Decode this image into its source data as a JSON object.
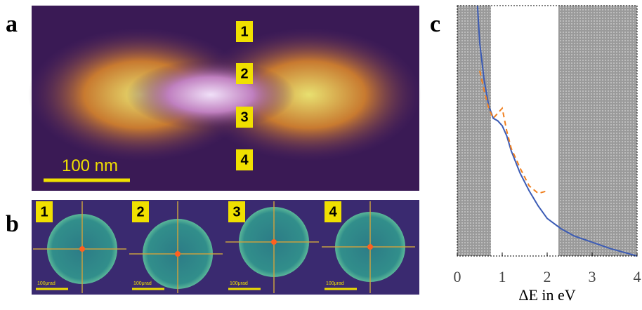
{
  "panel_a": {
    "label": "a",
    "scale_bar": "100 nm",
    "markers": [
      "1",
      "2",
      "3",
      "4"
    ]
  },
  "panel_b": {
    "label": "b",
    "insets": [
      {
        "marker": "1",
        "scale_bar": "100μrad"
      },
      {
        "marker": "2",
        "scale_bar": "100μrad"
      },
      {
        "marker": "3",
        "scale_bar": "100μrad"
      },
      {
        "marker": "4",
        "scale_bar": "100μrad"
      }
    ]
  },
  "chart_data": {
    "type": "line",
    "label": "c",
    "xlabel": "ΔE in eV",
    "xlim": [
      0,
      4
    ],
    "xticks": [
      0,
      1,
      2,
      3,
      4
    ],
    "ylim": [
      0,
      1
    ],
    "shaded": [
      [
        0,
        0.75
      ],
      [
        2.25,
        4
      ]
    ],
    "series": [
      {
        "color": "#3b5bb5",
        "dash": false,
        "x": [
          0.45,
          0.5,
          0.6,
          0.7,
          0.8,
          0.9,
          1.0,
          1.1,
          1.2,
          1.4,
          1.6,
          1.8,
          2.0,
          2.3,
          2.6,
          3.0,
          3.4,
          3.8,
          4.0
        ],
        "values": [
          1.0,
          0.85,
          0.7,
          0.6,
          0.55,
          0.54,
          0.52,
          0.48,
          0.42,
          0.33,
          0.26,
          0.2,
          0.15,
          0.11,
          0.08,
          0.055,
          0.03,
          0.01,
          0.0
        ]
      },
      {
        "color": "#f08020",
        "dash": true,
        "x": [
          0.5,
          0.6,
          0.7,
          0.8,
          0.9,
          1.0,
          1.1,
          1.2,
          1.4,
          1.6,
          1.8,
          2.0
        ],
        "values": [
          0.74,
          0.66,
          0.59,
          0.55,
          0.57,
          0.59,
          0.5,
          0.43,
          0.35,
          0.28,
          0.25,
          0.26
        ]
      }
    ]
  }
}
